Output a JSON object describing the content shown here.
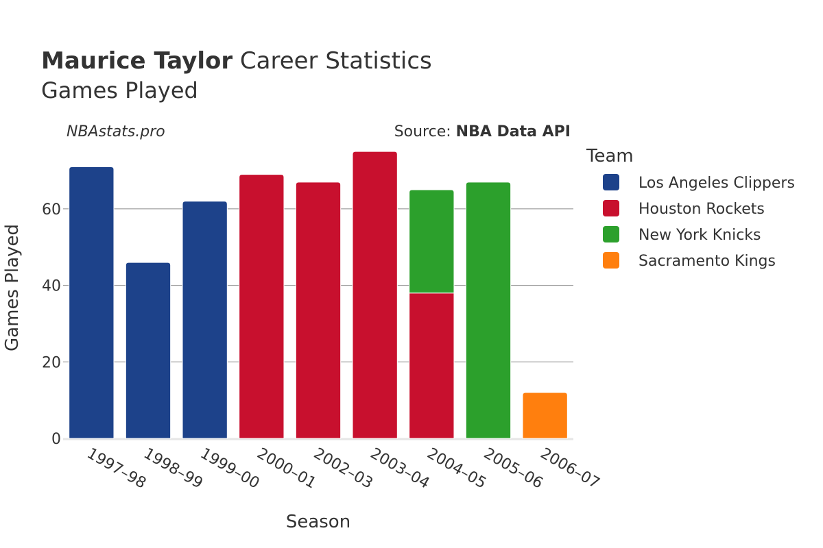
{
  "header": {
    "title_strong": "Maurice Taylor",
    "title_rest": " Career Statistics",
    "subtitle": "Games Played",
    "watermark": "NBAstats.pro",
    "source_prefix": "Source: ",
    "source_name": "NBA Data API"
  },
  "legend": {
    "title": "Team",
    "items": [
      {
        "label": "Los Angeles Clippers",
        "color": "#1d428a"
      },
      {
        "label": "Houston Rockets",
        "color": "#c8102e"
      },
      {
        "label": "New York Knicks",
        "color": "#2ca02c"
      },
      {
        "label": "Sacramento Kings",
        "color": "#ff7f0e"
      }
    ]
  },
  "chart_data": {
    "type": "bar",
    "stacked": true,
    "title": "Maurice Taylor Career Statistics",
    "subtitle": "Games Played",
    "xlabel": "Season",
    "ylabel": "Games Played",
    "ylim": [
      0,
      77
    ],
    "yticks": [
      0,
      20,
      40,
      60
    ],
    "grid": true,
    "legend_position": "right",
    "categories": [
      "1997–98",
      "1998–99",
      "1999–00",
      "2000–01",
      "2002–03",
      "2003–04",
      "2004–05",
      "2005–06",
      "2006–07"
    ],
    "series": [
      {
        "name": "Los Angeles Clippers",
        "color": "#1d428a",
        "values": [
          71,
          46,
          62,
          0,
          0,
          0,
          0,
          0,
          0
        ]
      },
      {
        "name": "Houston Rockets",
        "color": "#c8102e",
        "values": [
          0,
          0,
          0,
          69,
          67,
          75,
          38,
          0,
          0
        ]
      },
      {
        "name": "New York Knicks",
        "color": "#2ca02c",
        "values": [
          0,
          0,
          0,
          0,
          0,
          0,
          27,
          67,
          0
        ]
      },
      {
        "name": "Sacramento Kings",
        "color": "#ff7f0e",
        "values": [
          0,
          0,
          0,
          0,
          0,
          0,
          0,
          0,
          12
        ]
      }
    ]
  }
}
